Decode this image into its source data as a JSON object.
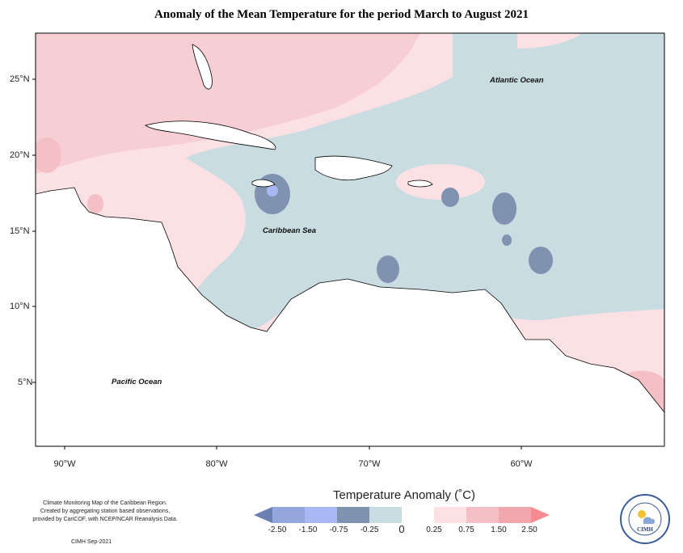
{
  "title": "Anomaly of the Mean Temperature for the period March to August 2021",
  "map": {
    "lat_ticks": [
      "25°N",
      "20°N",
      "15°N",
      "10°N",
      "5°N"
    ],
    "lon_ticks": [
      "90°W",
      "80°W",
      "70°W",
      "60°W"
    ],
    "labels": {
      "atlantic": "Atlantic Ocean",
      "caribbean": "Caribbean Sea",
      "pacific": "Pacific Ocean"
    }
  },
  "legend": {
    "title": "Temperature Anomaly (˚C)",
    "ticks": [
      "-2.50",
      "-1.50",
      "-0.75",
      "-0.25",
      "0",
      "0.25",
      "0.75",
      "1.50",
      "2.50"
    ],
    "colors": [
      "#6b7fb0",
      "#95a6dc",
      "#a9b8f4",
      "#7f93b0",
      "#c8dce2",
      "#ffffff",
      "#fbe1e4",
      "#f4c0c6",
      "#f2a6ae",
      "#f58c92"
    ]
  },
  "credits": {
    "line1": "Climate Monitoring Map of the Caribbean Region.",
    "line2": "Created by aggregating station based observations,",
    "line3": "provided by CariCOF, with NCEP/NCAR Reanalysis Data.",
    "stamp": "CIMH Sep-2021"
  },
  "logo": {
    "text": "CIMH",
    "ring_top": "Caribbean Institute for",
    "ring_bottom": "Meteorology and Hydrology"
  }
}
